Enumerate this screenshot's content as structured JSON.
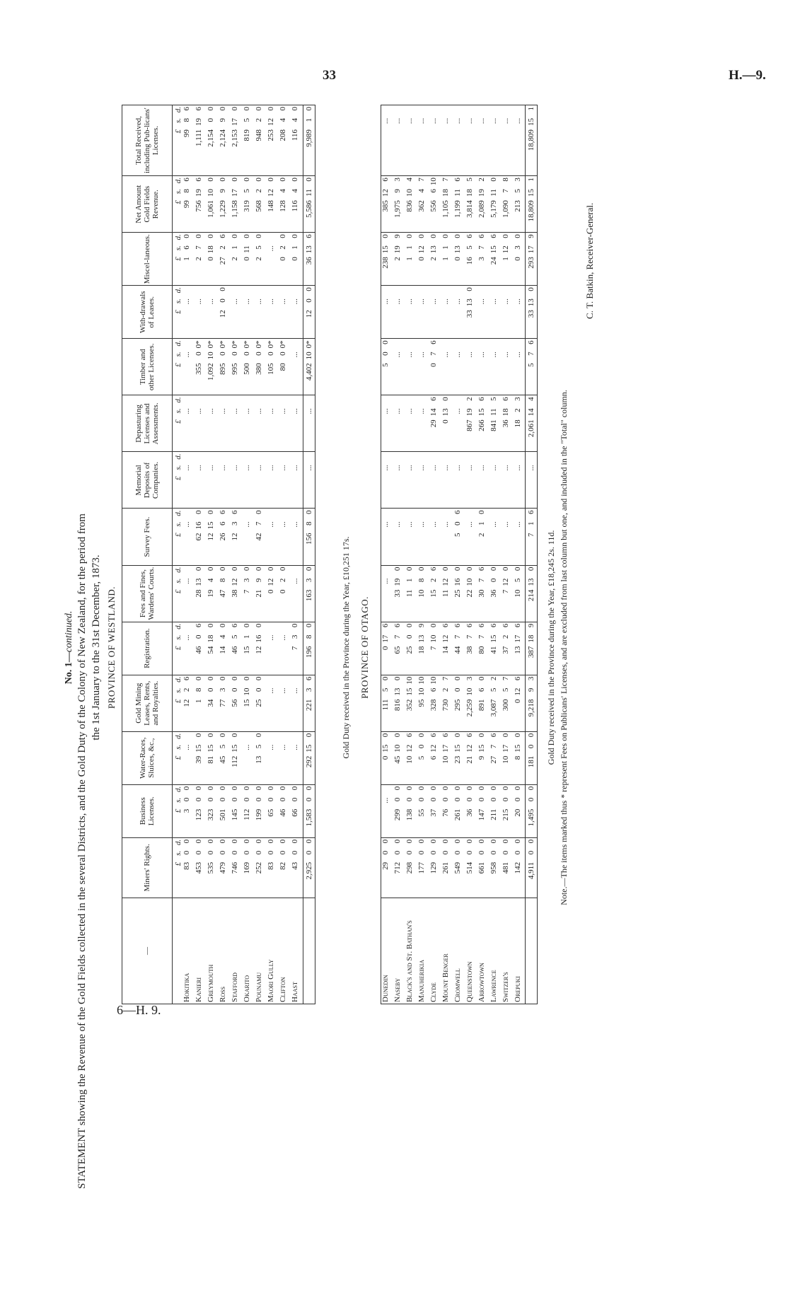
{
  "page_number": "33",
  "page_ref": "H.—9.",
  "sheet_ref": "6—H. 9.",
  "continued": "No. 1—",
  "continued_italic": "continued.",
  "title_line1": "STATEMENT showing the Revenue of the Gold Fields collected in the several Districts, and the Gold Duty of the Colony of New Zealand, for the period from",
  "title_line2": "the 1st January to the 31st December, 1873.",
  "columns": [
    "—",
    "Miners' Rights.",
    "Business Licenses.",
    "Water-Races, Sluices, &c.,",
    "Gold Mining Leases, Rents, and Royalties.",
    "Registration.",
    "Fees and Fines, Wardens' Courts.",
    "Survey Fees.",
    "Memorial Deposits of Companies.",
    "Depasturing Licenses and Assessments.",
    "Timber and other Licenses.",
    "With-drawals of Leases.",
    "Miscel-laneous.",
    "Net Amount Gold Fields Revenue.",
    "Total Received, including Pub-licans' Licenses."
  ],
  "units": [
    "£",
    "s.",
    "d."
  ],
  "westland": {
    "heading": "PROVINCE OF WESTLAND.",
    "rows": [
      {
        "name": "Hokitika",
        "cells": [
          "83 0 0",
          "3 0 0",
          "...",
          "12 2 6",
          "...",
          "...",
          "...",
          "...",
          "...",
          "...",
          "...",
          "1 6 0",
          "99 8 6",
          "99 8 6"
        ]
      },
      {
        "name": "Kanieri",
        "cells": [
          "453 0 0",
          "123 0 0",
          "39 15 0",
          "1 8 0",
          "46 0 6",
          "28 13 0",
          "62 16 0",
          "...",
          "...",
          "355 0 0*",
          "...",
          "2 7 0",
          "756 19 6",
          "1,111 19 6"
        ]
      },
      {
        "name": "Greymouth",
        "cells": [
          "535 0 0",
          "323 0 0",
          "81 15 0",
          "34 0 0",
          "54 18 0",
          "19 4 0",
          "12 15 0",
          "...",
          "...",
          "1,092 10 0*",
          "...",
          "0 18 0",
          "1,061 10 0",
          "2,154 0 0"
        ]
      },
      {
        "name": "Ross",
        "cells": [
          "479 0 0",
          "501 0 0",
          "45 5 0",
          "77 3 0",
          "14 4 0",
          "47 8 0",
          "26 6 6",
          "...",
          "...",
          "895 0 0*",
          "12 0 0",
          "27 2 6",
          "1,229 9 0",
          "2,124 9 0"
        ]
      },
      {
        "name": "Stafford",
        "cells": [
          "746 0 0",
          "145 0 0",
          "112 15 0",
          "56 0 0",
          "46 5 6",
          "38 12 0",
          "12 3 6",
          "...",
          "...",
          "995 0 0*",
          "...",
          "2 1 0",
          "1,158 17 0",
          "2,153 17 0"
        ]
      },
      {
        "name": "Okarito",
        "cells": [
          "169 0 0",
          "112 0 0",
          "...",
          "15 10 0",
          "15 1 0",
          "7 3 0",
          "...",
          "...",
          "...",
          "500 0 0*",
          "...",
          "0 11 0",
          "319 5 0",
          "819 5 0"
        ]
      },
      {
        "name": "Pounamu",
        "cells": [
          "252 0 0",
          "199 0 0",
          "13 5 0",
          "25 0 0",
          "12 16 0",
          "21 9 0",
          "42 7 0",
          "...",
          "...",
          "380 0 0*",
          "...",
          "2 5 0",
          "568 2 0",
          "948 2 0"
        ]
      },
      {
        "name": "Maori Gully",
        "cells": [
          "83 0 0",
          "65 0 0",
          "...",
          "...",
          "...",
          "0 12 0",
          "...",
          "...",
          "...",
          "105 0 0*",
          "...",
          "...",
          "148 12 0",
          "253 12 0"
        ]
      },
      {
        "name": "Clifton",
        "cells": [
          "82 0 0",
          "46 0 0",
          "...",
          "...",
          "...",
          "0 2 0",
          "...",
          "...",
          "...",
          "80 0 0*",
          "...",
          "0 2 0",
          "128 4 0",
          "208 4 0"
        ]
      },
      {
        "name": "Haast",
        "cells": [
          "43 0 0",
          "66 0 0",
          "...",
          "...",
          "7 3 0",
          "...",
          "...",
          "...",
          "...",
          "...",
          "...",
          "0 1 0",
          "116 4 0",
          "116 4 0"
        ]
      }
    ],
    "totals": [
      "2,925 0 0",
      "1,583 0 0",
      "292 15 0",
      "221 3 6",
      "196 8 0",
      "163 3 0",
      "156 8 0",
      "...",
      "...",
      "4,402 10 0*",
      "12 0 0",
      "36 13 6",
      "5,586 11 0",
      "9,989 1 0"
    ],
    "gold_duty": "Gold Duty received in the Province during the Year, £10,251 17s."
  },
  "otago": {
    "heading": "PROVINCE OF OTAGO.",
    "rows": [
      {
        "name": "Dunedin",
        "cells": [
          "29 0 0",
          "...",
          "0 15 0",
          "111 5 0",
          "0 17 6",
          "...",
          "...",
          "...",
          "...",
          "5 0 0",
          "...",
          "238 15 0",
          "385 12 6",
          "..."
        ]
      },
      {
        "name": "Naseby",
        "cells": [
          "712 0 0",
          "299 0 0",
          "45 10 0",
          "816 13 0",
          "65 7 6",
          "33 19 0",
          "...",
          "...",
          "...",
          "...",
          "...",
          "2 19 9",
          "1,975 9 3",
          "..."
        ]
      },
      {
        "name": "Black's and St. Bathan's",
        "cells": [
          "298 0 0",
          "138 0 0",
          "10 12 6",
          "352 15 10",
          "25 0 0",
          "11 1 0",
          "...",
          "...",
          "...",
          "...",
          "...",
          "1 1 0",
          "836 10 4",
          "..."
        ]
      },
      {
        "name": "Manuherikia",
        "cells": [
          "177 0 0",
          "55 0 0",
          "5 0 0",
          "95 10 10",
          "18 13 9",
          "10 8 0",
          "...",
          "...",
          "...",
          "...",
          "...",
          "0 12 0",
          "362 4 7",
          "..."
        ]
      },
      {
        "name": "Clyde",
        "cells": [
          "129 0 0",
          "37 0 0",
          "6 12 6",
          "328 6 10",
          "7 10 0",
          "15 2 6",
          "...",
          "...",
          "29 14 6",
          "0 7 6",
          "...",
          "2 13 0",
          "556 6 10",
          "..."
        ]
      },
      {
        "name": "Mount Benger",
        "cells": [
          "261 0 0",
          "76 0 0",
          "10 17 6",
          "730 2 7",
          "14 12 6",
          "11 12 0",
          "...",
          "...",
          "0 13 0",
          "...",
          "...",
          "1 1 0",
          "1,105 18 7",
          "..."
        ]
      },
      {
        "name": "Cromwell",
        "cells": [
          "549 0 0",
          "261 0 0",
          "23 15 0",
          "295 0 0",
          "44 7 6",
          "25 16 0",
          "5 0 6",
          "...",
          "...",
          "...",
          "...",
          "0 13 0",
          "1,199 11 6",
          "..."
        ]
      },
      {
        "name": "Queenstown",
        "cells": [
          "514 0 0",
          "36 0 0",
          "21 12 6",
          "2,259 10 3",
          "38 7 6",
          "22 10 0",
          "...",
          "...",
          "867 19 2",
          "...",
          "33 13 0",
          "16 5 6",
          "3,814 18 5",
          "..."
        ]
      },
      {
        "name": "Arrowtown",
        "cells": [
          "661 0 0",
          "147 0 0",
          "9 15 0",
          "891 6 0",
          "80 7 6",
          "30 7 6",
          "2 1 0",
          "...",
          "266 15 6",
          "...",
          "...",
          "3 7 6",
          "2,089 19 2",
          "..."
        ]
      },
      {
        "name": "Lawrence",
        "cells": [
          "958 0 0",
          "211 0 0",
          "27 7 6",
          "3,087 5 2",
          "41 15 6",
          "36 0 0",
          "...",
          "...",
          "841 11 5",
          "...",
          "...",
          "24 15 6",
          "5,179 11 0",
          "..."
        ]
      },
      {
        "name": "Switzer's",
        "cells": [
          "481 0 0",
          "215 0 0",
          "10 17 0",
          "300 5 7",
          "37 2 6",
          "7 12 0",
          "...",
          "...",
          "36 18 6",
          "...",
          "...",
          "1 12 0",
          "1,090 7 8",
          "..."
        ]
      },
      {
        "name": "Orepuki",
        "cells": [
          "142 0 0",
          "20 0 0",
          "8 15 0",
          "0 12 6",
          "13 17 6",
          "10 5 0",
          "...",
          "...",
          "18 2 3",
          "...",
          "...",
          "0 3 0",
          "213 5 3",
          "..."
        ]
      }
    ],
    "totals": [
      "4,911 0 0",
      "1,495 0 0",
      "181 0 0",
      "9,218 9 3",
      "387 18 9",
      "214 13 0",
      "7 1 6",
      "...",
      "2,061 14 4",
      "5 7 6",
      "33 13 0",
      "293 17 9",
      "18,809 15 1",
      "18,809 15 1"
    ],
    "gold_duty": "Gold Duty received in the Province during the Year, £18,245 2s. 11d."
  },
  "note": "Note.—The items marked thus * represent Fees on Publicans' Licenses, and are excluded from last column but one, and included in the \"Total\" column.",
  "signature": "C. T. Batkin, Receiver-General."
}
